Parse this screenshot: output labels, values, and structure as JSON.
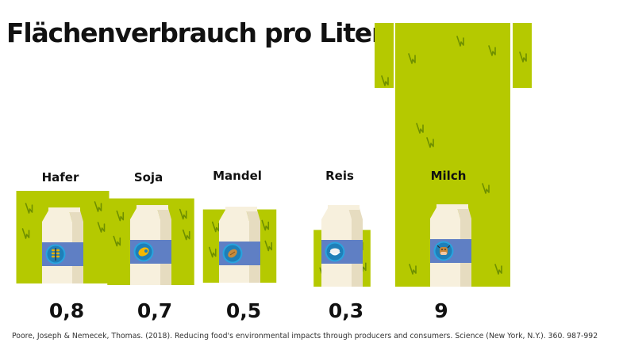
{
  "colors": {
    "field": "#b5c900",
    "grass": "#6e8f00",
    "carton_front": "#f7f0dd",
    "carton_side": "#e6dcc0",
    "band": "#5f7fc4",
    "badge": "#2aa3de"
  },
  "chart_data": {
    "type": "bar",
    "title": "Flächenverbrauch pro Liter",
    "categories": [
      "Hafer",
      "Soja",
      "Mandel",
      "Reis",
      "Milch"
    ],
    "values": [
      0.8,
      0.7,
      0.5,
      0.3,
      9
    ],
    "value_labels": [
      "0,8",
      "0,7",
      "0,5",
      "0,3",
      "9"
    ],
    "icons": [
      "wheat-icon",
      "soybean-icon",
      "almond-icon",
      "rice-bowl-icon",
      "cow-icon"
    ],
    "xlabel": "",
    "ylabel": "",
    "source": "Poore, Joseph & Nemecek, Thomas. (2018). Reducing food's environmental impacts through producers and consumers. Science (New York, N.Y.). 360. 987-992"
  }
}
